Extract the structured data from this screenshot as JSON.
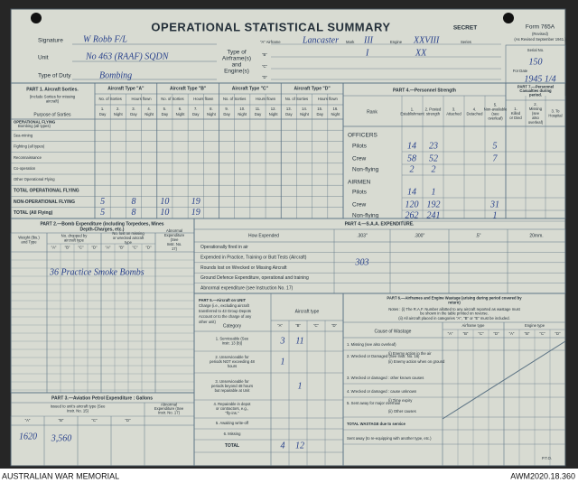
{
  "header": {
    "title": "OPERATIONAL STATISTICAL SUMMARY",
    "secret": "SECRET",
    "form": "Form 765A",
    "revised": "(Revised)",
    "revised_date": "(As Revised September 1941.)",
    "serial_label": "Serial No.",
    "serial": "150",
    "date_label": "For Date",
    "date": "1945 1/4"
  },
  "fields": {
    "signature_label": "Signature",
    "signature": "W Robb F/L",
    "unit_label": "Unit",
    "unit": "No 463 (RAAF) SQDN",
    "duty_label": "Type of Duty",
    "duty": "Bombing",
    "airframe_label": "Type of Airframe(s) and Engine(s)",
    "a_label": "\"A\" Airframe",
    "a_airframe": "Lancaster",
    "mark_label": "Mark",
    "a_mark": "III",
    "engine_label": "Engine",
    "a_engine": "XXVIII",
    "series_label": "Series",
    "b_label": "\"B\"",
    "b_mark": "I",
    "b_engine": "XX",
    "c_label": "\"C\"",
    "d_label": "\"D\""
  },
  "part1": {
    "title": "PART 1. Aircraft Sorties.",
    "note": "(Include Sorties for missing aircraft)",
    "purpose_label": "Purpose of Sorties",
    "types": [
      "Aircraft Type \"A\"",
      "Aircraft Type \"B\"",
      "Aircraft Type \"C\"",
      "Aircraft Type \"D\""
    ],
    "sorties_label": "No. of Sorties",
    "hours_label": "Hours flown",
    "day": "Day",
    "night": "Night",
    "col_numbers": [
      "1.",
      "2.",
      "3.",
      "4.",
      "5.",
      "6.",
      "7.",
      "8.",
      "9.",
      "10.",
      "11.",
      "12.",
      "13.",
      "14.",
      "15.",
      "16."
    ],
    "section": "OPERATIONAL FLYING",
    "rows": [
      "Bombing (all types)",
      "Sea-mining",
      "Fighting (all types)",
      "Reconnaissance",
      "Co-operation",
      "Other Operational Flying",
      "TOTAL OPERATIONAL FLYING",
      "NON-OPERATIONAL FLYING",
      "TOTAL (All Flying)"
    ],
    "non_operational": [
      5,
      8,
      10,
      19
    ],
    "total_all": [
      5,
      8,
      10,
      19
    ]
  },
  "part4_personnel": {
    "title": "PART 4.—Personnel Strength",
    "rank_label": "Rank",
    "columns": [
      "1. Establishment",
      "2. Posted strength",
      "3. Attached",
      "4. Detached",
      "5. Non-available (see overleaf)"
    ],
    "part7_title": "PART 7.—Personnel Casualties during period.",
    "part7_columns": [
      "1. Killed or Died",
      "2. Missing (see also overleaf)",
      "3. To Hospital"
    ],
    "officers": "OFFICERS",
    "airmen": "AIRMEN",
    "rows": [
      {
        "label": "Pilots",
        "establishment": 14,
        "posted": 23,
        "non_available": 5
      },
      {
        "label": "Crew",
        "establishment": 58,
        "posted": 52,
        "non_available": 7
      },
      {
        "label": "Non-flying",
        "establishment": 2,
        "posted": 2
      },
      {
        "label": "Pilots",
        "establishment": 14,
        "posted": 1
      },
      {
        "label": "Crew",
        "establishment": 120,
        "posted": 192,
        "non_available": 31
      },
      {
        "label": "Non-flying",
        "establishment": 262,
        "posted": 241,
        "non_available": 1
      }
    ]
  },
  "part2": {
    "title": "PART 2.—Bomb Expenditure (including Torpedoes, Mines",
    "title2": "Depth-Charges, etc.)",
    "weight_label": "Weight (lbs.) and Type",
    "dropped_label": "No. dropped by aircraft type",
    "lost_label": "No. lost on missing or wrecked aircraft type",
    "abnormal_label": "Abnormal Expenditure (See Instr. No. 17)",
    "letters": [
      "\"A\"",
      "\"B\"",
      "\"C\"",
      "\"D\""
    ],
    "entry": "36 Practice Smoke Bombs"
  },
  "part4_saa": {
    "title": "PART 4.—S.A.A. EXPENDITURE.",
    "how_label": "How Expended",
    "calibres": [
      ".303\"",
      ".300\"",
      ".5\"",
      "20mm."
    ],
    "rows": [
      "Operationally fired in air",
      "Expended in Practice, Training or Butt Tests (Aircraft)",
      "Rounds lost on Wrecked or Missing Aircraft",
      "Ground Defence Expenditure, operational and training",
      "Abnormal expenditure (see Instruction No. 17)"
    ],
    "entry": "303"
  },
  "part5": {
    "title": [
      "PART 5.—Aircraft on UNIT",
      "Charge (i.e., excluding aircraft",
      "transferred to 43 Group Depots",
      "Account or to the charge of any",
      "other unit)"
    ],
    "type_label": "Aircraft type",
    "category_label": "Category",
    "letters": [
      "\"A\"",
      "\"B\"",
      "\"C\"",
      "\"D\""
    ],
    "rows": [
      {
        "label": "1. Serviceable (See Instr. 13 (b))",
        "a": 3,
        "b": 11
      },
      {
        "label": "2. Unserviceable for periods NOT exceeding 48 hours",
        "a": 1
      },
      {
        "label": "3. Unserviceable for periods beyond 48 hours but repairable at Unit",
        "b": 1
      },
      {
        "label": "4. Repairable in depot or contractors, e.g., \"fly-ins.\""
      },
      {
        "label": "5. Awaiting write-off"
      },
      {
        "label": "6. Missing"
      },
      {
        "label": "TOTAL",
        "a": 4,
        "b": 12
      }
    ]
  },
  "part6": {
    "title": "PART 6.—Airframes and Engine Wastage (arising during period covered by return)",
    "note1": "Notes : (i) The R.A.F. Number allotted to any aircraft reported as wastage must be shown in the table printed on reverse.",
    "note2": "(ii) All aircraft placed in categories \"A\", \"B\" or \"E\" must be included.",
    "cause_label": "Cause of Wastage",
    "airframe_label": "Airframe type",
    "engine_label": "Engine type",
    "letters": [
      "\"A\"",
      "\"B\"",
      "\"C\"",
      "\"D\""
    ],
    "rows": [
      "1. Missing (see also overleaf)",
      "2. Wrecked or Damaged (See Instr. No. 16)",
      "(i) Enemy action in the air",
      "(ii) Enemy action when on ground",
      "3. Wrecked or damaged : other known causes",
      "4. Wrecked or damaged : cause unknown",
      "5. Sent away for major overhaul",
      "(i) Time expiry",
      "(ii) Other causes",
      "TOTAL WASTAGE due to service",
      "Sent away (to re-equipping with another type, etc.)"
    ]
  },
  "part3": {
    "title": "PART 3.—Aviation Petrol Expenditure : Gallons",
    "issued_label": "Issued to unit's aircraft type (See Instr. No. 15)",
    "abnormal_label": "Abnormal Expenditure (See Instr. No. 17)",
    "letters": [
      "\"A\"",
      "\"B\"",
      "\"C\"",
      "\"D\""
    ],
    "a": "1620",
    "b": "3,560"
  },
  "footer": {
    "pto": "P.T.O.",
    "left": "AUSTRALIAN WAR MEMORIAL",
    "right": "AWM2020.18.360"
  }
}
